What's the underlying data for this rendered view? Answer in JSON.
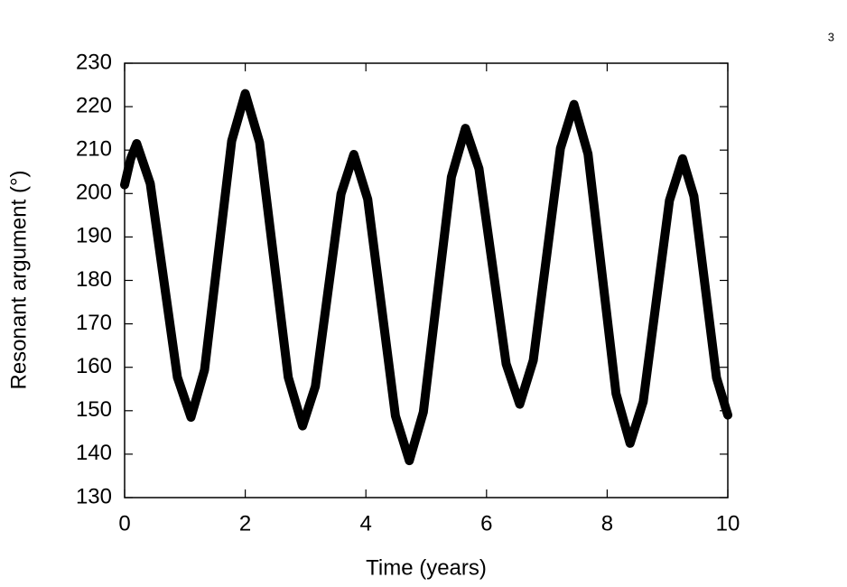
{
  "page_number": "3",
  "chart_data": {
    "type": "line",
    "xlabel": "Time (years)",
    "ylabel": "Resonant argument (°)",
    "xlim": [
      0,
      10
    ],
    "xticks": [
      0,
      2,
      4,
      6,
      8,
      10
    ],
    "ylim": [
      130,
      230
    ],
    "yticks": [
      130,
      140,
      150,
      160,
      170,
      180,
      190,
      200,
      210,
      220,
      230
    ],
    "color": "#000000",
    "x": [
      0,
      0.1,
      0.2,
      0.425,
      0.65,
      0.875,
      1.1,
      1.325,
      1.55,
      1.775,
      2.0,
      2.2375,
      2.475,
      2.7125,
      2.95,
      3.1625,
      3.375,
      3.5875,
      3.8,
      4.03,
      4.26,
      4.49,
      4.72,
      4.9525,
      5.185,
      5.4175,
      5.65,
      5.875,
      6.1,
      6.325,
      6.55,
      6.775,
      7.0,
      7.225,
      7.45,
      7.6825,
      7.915,
      8.1475,
      8.38,
      8.5975,
      8.815,
      9.0325,
      9.25,
      9.4375,
      9.625,
      9.8125,
      10
    ],
    "values": [
      202,
      208,
      211.5,
      202.3,
      180,
      157.7,
      148.5,
      159.4,
      185.8,
      212.1,
      223,
      211.8,
      184.8,
      157.7,
      146.5,
      155.6,
      177.8,
      199.9,
      209,
      198.7,
      173.8,
      148.8,
      138.5,
      149.7,
      176.8,
      203.8,
      215,
      205.7,
      183.3,
      160.8,
      151.5,
      161.6,
      186,
      210.4,
      220.5,
      209.1,
      181.5,
      153.9,
      142.5,
      152.1,
      175.3,
      198.4,
      208,
      199.4,
      178.5,
      157.6,
      149
    ]
  }
}
